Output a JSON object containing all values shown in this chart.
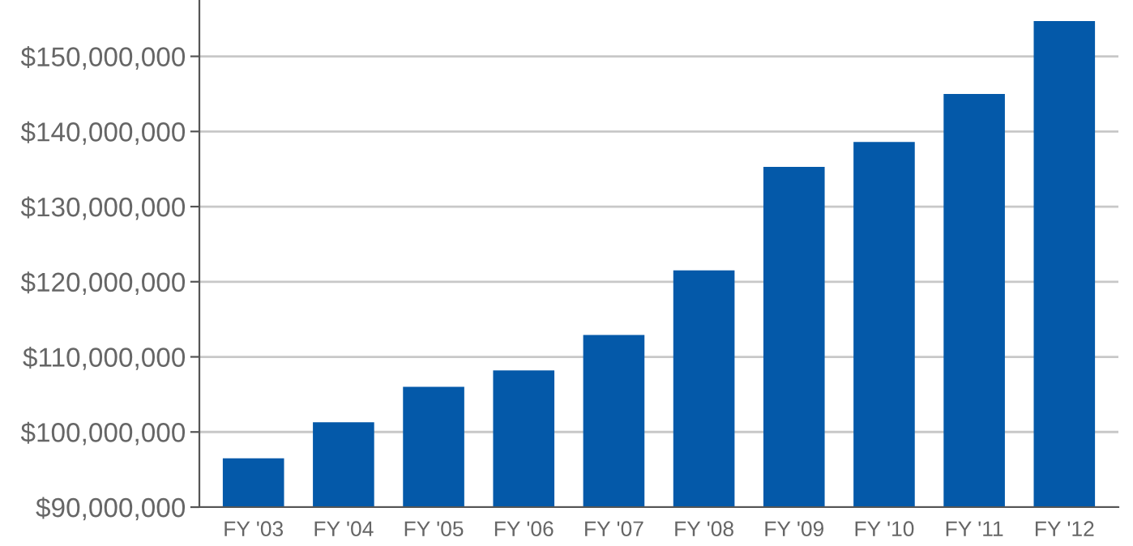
{
  "chart_data": {
    "type": "bar",
    "categories": [
      "FY '03",
      "FY '04",
      "FY '05",
      "FY '06",
      "FY '07",
      "FY '08",
      "FY '09",
      "FY '10",
      "FY '11",
      "FY '12"
    ],
    "values": [
      96500000,
      101300000,
      106000000,
      108200000,
      112900000,
      121500000,
      135300000,
      138600000,
      145000000,
      154700000
    ],
    "color": "#0459a9",
    "ylim": [
      90000000,
      157500000
    ],
    "yticks": [
      {
        "value": 90000000,
        "label": "$90,000,000"
      },
      {
        "value": 100000000,
        "label": "$100,000,000"
      },
      {
        "value": 110000000,
        "label": "$110,000,000"
      },
      {
        "value": 120000000,
        "label": "$120,000,000"
      },
      {
        "value": 130000000,
        "label": "$130,000,000"
      },
      {
        "value": 140000000,
        "label": "$140,000,000"
      },
      {
        "value": 150000000,
        "label": "$150,000,000"
      }
    ],
    "grid": "y"
  }
}
